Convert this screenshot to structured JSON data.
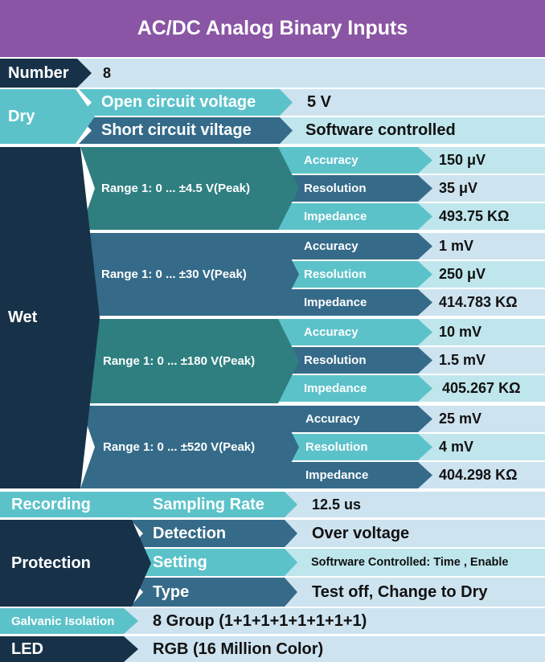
{
  "title": "AC/DC Analog Binary Inputs",
  "number": {
    "label": "Number",
    "value": "8"
  },
  "dry": {
    "label": "Dry",
    "rows": [
      {
        "label": "Open circuit voltage",
        "value": "5 V"
      },
      {
        "label": "Short circuit viltage",
        "value": "Software controlled"
      }
    ]
  },
  "wet": {
    "label": "Wet",
    "ranges": [
      {
        "label": "Range 1: 0 ... ±4.5 V(Peak)",
        "rows": [
          {
            "label": "Accuracy",
            "value": "150 μV"
          },
          {
            "label": "Resolution",
            "value": "35 μV"
          },
          {
            "label": "Impedance",
            "value": "493.75 KΩ"
          }
        ]
      },
      {
        "label": "Range 1: 0 ... ±30 V(Peak)",
        "rows": [
          {
            "label": "Accuracy",
            "value": "1 mV"
          },
          {
            "label": "Resolution",
            "value": "250 μV"
          },
          {
            "label": "Impedance",
            "value": "414.783 KΩ"
          }
        ]
      },
      {
        "label": "Range 1: 0 ... ±180 V(Peak)",
        "rows": [
          {
            "label": "Accuracy",
            "value": "10 mV"
          },
          {
            "label": "Resolution",
            "value": "1.5 mV"
          },
          {
            "label": "Impedance",
            "value": "405.267 KΩ"
          }
        ]
      },
      {
        "label": "Range 1: 0 ... ±520 V(Peak)",
        "rows": [
          {
            "label": "Accuracy",
            "value": "25 mV"
          },
          {
            "label": "Resolution",
            "value": "4 mV"
          },
          {
            "label": "Impedance",
            "value": "404.298 KΩ"
          }
        ]
      }
    ]
  },
  "recording": {
    "label": "Recording",
    "sub_label": "Sampling Rate",
    "value": "12.5 us"
  },
  "protection": {
    "label": "Protection",
    "rows": [
      {
        "label": "Detection",
        "value": "Over voltage"
      },
      {
        "label": "Setting",
        "value": "Softrware Controlled: Time , Enable"
      },
      {
        "label": "Type",
        "value": "Test off, Change to Dry"
      }
    ]
  },
  "galvanic": {
    "label": "Galvanic Isolation",
    "value": "8 Group (1+1+1+1+1+1+1+1)"
  },
  "led": {
    "label": "LED",
    "value": "RGB (16 Million Color)"
  },
  "colors": {
    "header": "#8a55a4",
    "navy": "#173248",
    "teal": "#5cc2ca",
    "blue": "#356b89",
    "green": "#2f7f80",
    "value_bg": "#cde3ef"
  }
}
